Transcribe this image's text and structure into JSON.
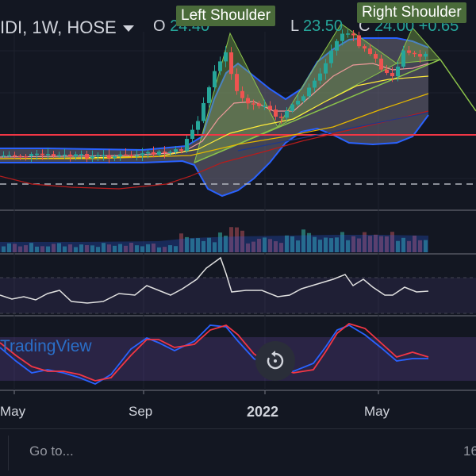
{
  "header": {
    "symbol": "IDI, 1W, HOSE",
    "open_label": "O",
    "open_value": "24.40",
    "low_label": "L",
    "low_value": "23.50",
    "close_label": "C",
    "close_value": "24.00",
    "change_value": "+0.65"
  },
  "annotations": {
    "left_shoulder": "Left Shoulder",
    "right_shoulder": "Right Shoulder"
  },
  "watermark": "TradingView",
  "x_axis": [
    "May",
    "Sep",
    "2022",
    "May"
  ],
  "goto": {
    "label": "Go to...",
    "value": "16"
  },
  "colors": {
    "up": "#26a69a",
    "down": "#ef5350",
    "support_line": "#f23645",
    "bollinger": "#2962ff",
    "pattern_fill": "#8bc34a",
    "badge": "#4a6b3a",
    "rsi_line": "#e0e0e0",
    "stoch_k": "#2962ff",
    "stoch_d": "#f23645"
  },
  "icons": {
    "replay": "replay-icon",
    "dropdown": "chevron-down-icon"
  }
}
